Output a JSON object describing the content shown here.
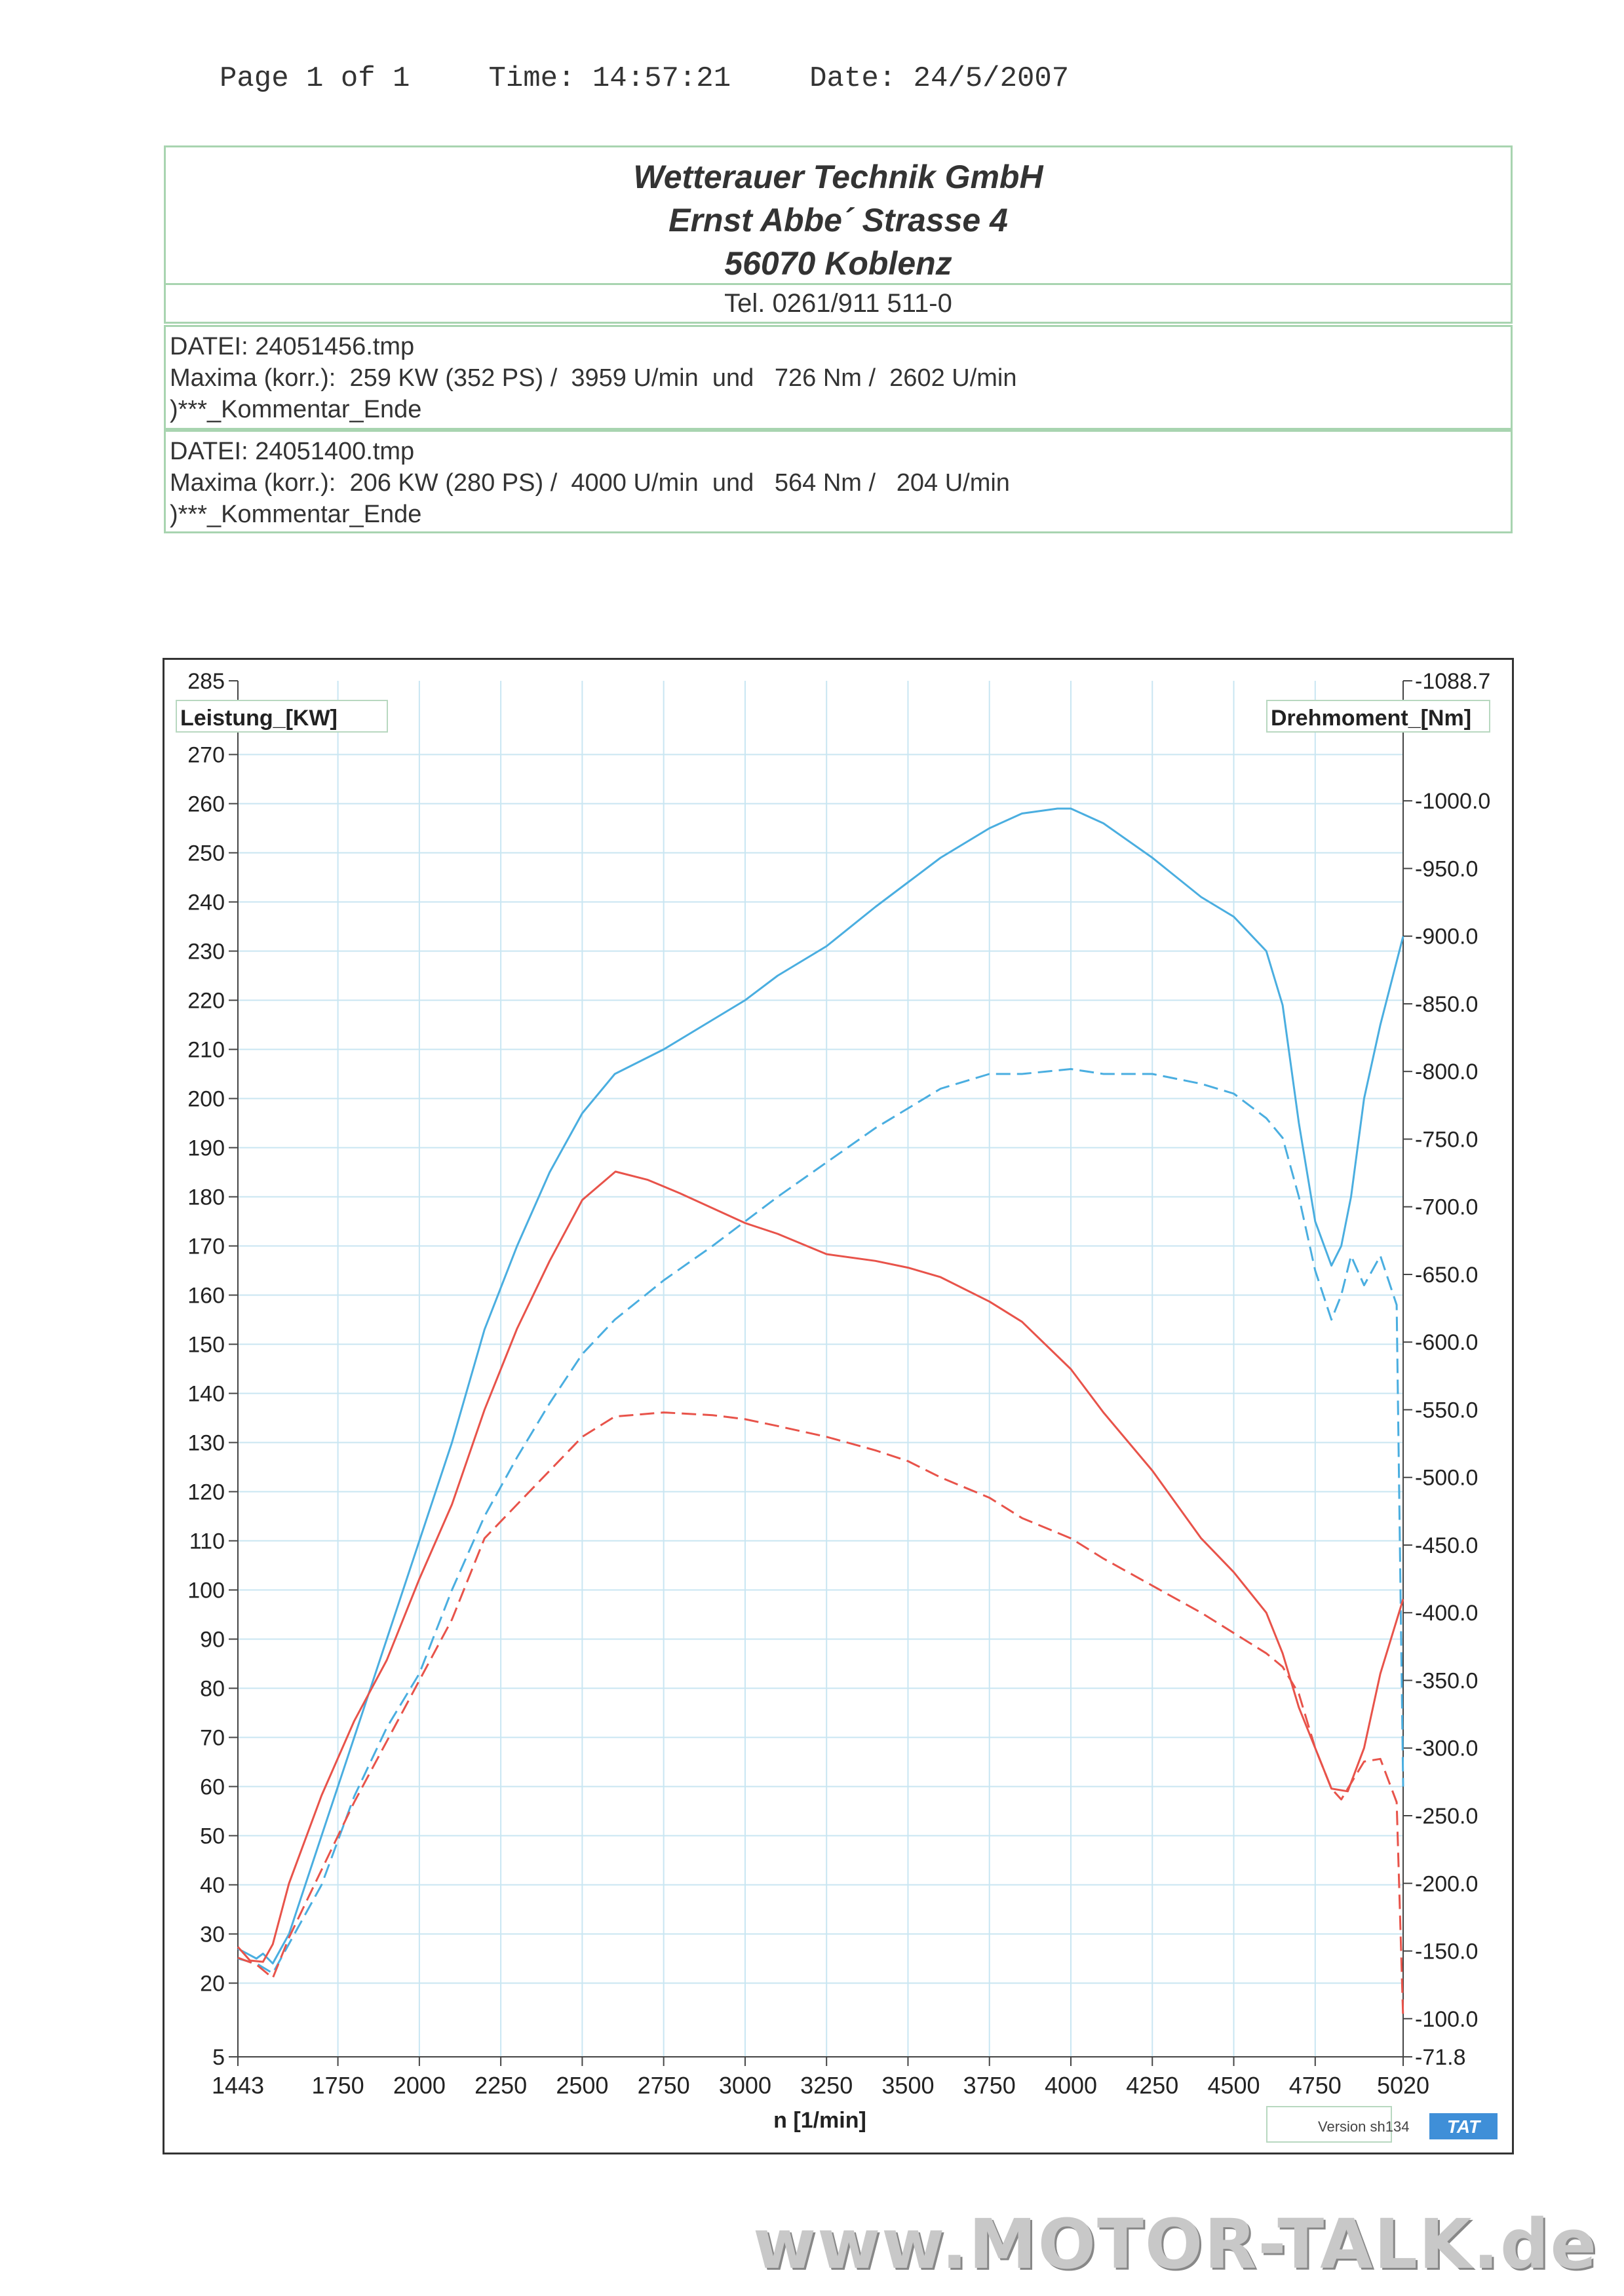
{
  "header": {
    "page": "Page 1 of 1",
    "time": "Time: 14:57:21",
    "date": "Date: 24/5/2007"
  },
  "company": {
    "name": "Wetterauer Technik GmbH",
    "street": "Ernst Abbe´ Strasse 4",
    "city": "56070 Koblenz",
    "tel": "Tel. 0261/911 511-0"
  },
  "runs": [
    {
      "file": "DATEI: 24051456.tmp",
      "maxima": "Maxima (korr.):  259 KW (352 PS) /  3959 U/min  und   726 Nm /  2602 U/min",
      "comment": ")***_Kommentar_Ende"
    },
    {
      "file": "DATEI: 24051400.tmp",
      "maxima": "Maxima (korr.):  206 KW (280 PS) /  4000 U/min  und   564 Nm /   204 U/min",
      "comment": ")***_Kommentar_Ende"
    }
  ],
  "chart_data": {
    "type": "line",
    "title": "",
    "xlabel": "n  [1/min]",
    "ylabel": "Leistung_[KW]",
    "y2label": "Drehmoment_[Nm]",
    "xlim": [
      1443,
      5020
    ],
    "ylim": [
      5,
      285
    ],
    "y2lim": [
      -71.8,
      -1088.7
    ],
    "x_ticks": [
      "1443",
      "1750",
      "2000",
      "2250",
      "2500",
      "2750",
      "3000",
      "3250",
      "3500",
      "3750",
      "4000",
      "4250",
      "4500",
      "4750",
      "5020"
    ],
    "y_ticks": [
      "285",
      "270",
      "260",
      "250",
      "240",
      "230",
      "220",
      "210",
      "200",
      "190",
      "180",
      "170",
      "160",
      "150",
      "140",
      "130",
      "120",
      "110",
      "100",
      "90",
      "80",
      "70",
      "60",
      "50",
      "40",
      "30",
      "20",
      "5"
    ],
    "y2_ticks": [
      "-1088.7",
      "-1000.0",
      "-950.0",
      "-900.0",
      "-850.0",
      "-800.0",
      "-750.0",
      "-700.0",
      "-650.0",
      "-600.0",
      "-550.0",
      "-500.0",
      "-450.0",
      "-400.0",
      "-350.0",
      "-300.0",
      "-250.0",
      "-200.0",
      "-150.0",
      "-100.0",
      "-71.8"
    ],
    "grid": true,
    "colors": {
      "power": "#4aaee0",
      "torque": "#e8534a",
      "grid": "#c9e6f2"
    },
    "series": [
      {
        "axis": "left",
        "style": "solid",
        "color": "#4aaee0",
        "x": [
          1443,
          1500,
          1520,
          1550,
          1600,
          1700,
          1800,
          1900,
          2000,
          2100,
          2200,
          2300,
          2400,
          2500,
          2600,
          2750,
          2900,
          3000,
          3100,
          3250,
          3400,
          3500,
          3600,
          3750,
          3850,
          3959,
          4000,
          4100,
          4250,
          4400,
          4500,
          4600,
          4650,
          4700,
          4750,
          4800,
          4830,
          4860,
          4900,
          4950,
          5020
        ],
        "values": [
          27,
          25,
          26,
          24,
          30,
          50,
          70,
          90,
          110,
          130,
          153,
          170,
          185,
          197,
          205,
          210,
          216,
          220,
          225,
          231,
          239,
          244,
          249,
          255,
          258,
          259,
          259,
          256,
          249,
          241,
          237,
          230,
          219,
          195,
          175,
          166,
          170,
          180,
          200,
          215,
          233
        ]
      },
      {
        "axis": "left",
        "style": "dashed",
        "color": "#4aaee0",
        "x": [
          1443,
          1500,
          1550,
          1600,
          1700,
          1800,
          1900,
          2000,
          2100,
          2200,
          2300,
          2400,
          2500,
          2600,
          2750,
          2900,
          3000,
          3100,
          3250,
          3400,
          3500,
          3600,
          3750,
          3850,
          4000,
          4100,
          4250,
          4400,
          4500,
          4600,
          4650,
          4700,
          4750,
          4800,
          4830,
          4860,
          4900,
          4950,
          5000,
          5020
        ],
        "values": [
          25,
          24,
          22,
          28,
          40,
          58,
          72,
          83,
          100,
          115,
          127,
          138,
          148,
          155,
          163,
          170,
          175,
          180,
          187,
          194,
          198,
          202,
          205,
          205,
          206,
          205,
          205,
          203,
          201,
          196,
          192,
          180,
          165,
          155,
          160,
          168,
          162,
          168,
          158,
          60
        ]
      },
      {
        "axis": "right",
        "style": "solid",
        "color": "#e8534a",
        "x": [
          1443,
          1480,
          1520,
          1550,
          1600,
          1700,
          1800,
          1900,
          2000,
          2100,
          2200,
          2300,
          2400,
          2500,
          2602,
          2700,
          2800,
          3000,
          3100,
          3250,
          3400,
          3500,
          3600,
          3750,
          3850,
          4000,
          4100,
          4250,
          4400,
          4500,
          4600,
          4650,
          4700,
          4750,
          4800,
          4850,
          4900,
          4950,
          5020
        ],
        "values": [
          -153,
          -143,
          -142,
          -155,
          -200,
          -265,
          -320,
          -365,
          -425,
          -480,
          -550,
          -610,
          -660,
          -705,
          -726,
          -720,
          -710,
          -688,
          -680,
          -665,
          -660,
          -655,
          -648,
          -630,
          -615,
          -580,
          -548,
          -505,
          -455,
          -430,
          -400,
          -370,
          -330,
          -300,
          -270,
          -268,
          -300,
          -355,
          -410
        ]
      },
      {
        "axis": "right",
        "style": "dashed",
        "color": "#e8534a",
        "x": [
          1443,
          1500,
          1550,
          1600,
          1700,
          1800,
          1900,
          2000,
          2100,
          2200,
          2300,
          2400,
          2500,
          2600,
          2750,
          2900,
          3000,
          3100,
          3250,
          3400,
          3500,
          3600,
          3750,
          3850,
          4000,
          4100,
          4250,
          4400,
          4500,
          4600,
          4650,
          4700,
          4750,
          4800,
          4830,
          4870,
          4900,
          4950,
          5000,
          5020
        ],
        "values": [
          -145,
          -140,
          -130,
          -160,
          -210,
          -260,
          -305,
          -350,
          -395,
          -455,
          -480,
          -505,
          -530,
          -545,
          -548,
          -546,
          -543,
          -538,
          -530,
          -520,
          -512,
          -500,
          -485,
          -470,
          -455,
          -440,
          -420,
          -400,
          -385,
          -370,
          -360,
          -340,
          -300,
          -270,
          -262,
          -278,
          -290,
          -292,
          -260,
          -100
        ]
      }
    ],
    "footer_badges": {
      "version": "Version sh134",
      "logo": "TAT"
    }
  }
}
